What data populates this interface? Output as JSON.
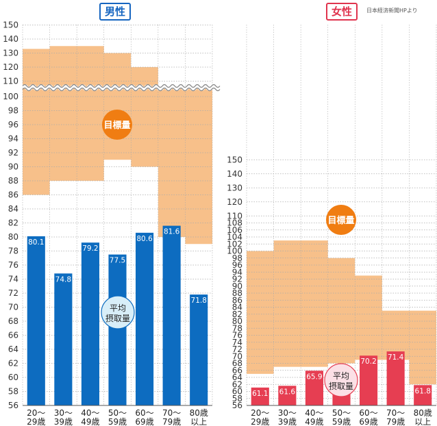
{
  "source_note": "日本経済新聞HPより",
  "colors": {
    "male_bar": "#0d6cc0",
    "female_bar": "#e63e52",
    "target_fill": "#f7c08a",
    "badge_target": "#f07d12",
    "male_badge": "#d8eef8",
    "female_badge": "#fbe0e6",
    "grid": "#aaaaaa"
  },
  "chart_data": [
    {
      "type": "bar",
      "title": "男性",
      "categories": [
        "20〜29歳",
        "30〜39歳",
        "40〜49歳",
        "50〜59歳",
        "60〜69歳",
        "70〜79歳",
        "80歳以上"
      ],
      "tick_labels": [
        [
          "20〜",
          "29歳"
        ],
        [
          "30〜",
          "39歳"
        ],
        [
          "40〜",
          "49歳"
        ],
        [
          "50〜",
          "59歳"
        ],
        [
          "60〜",
          "69歳"
        ],
        [
          "70〜",
          "79歳"
        ],
        [
          "80歳",
          "以上"
        ]
      ],
      "series": [
        {
          "name": "平均摂取量",
          "values": [
            80.1,
            74.8,
            79.2,
            77.5,
            80.6,
            81.6,
            71.8
          ]
        }
      ],
      "target_range": {
        "name": "目標量",
        "lower": [
          86,
          88,
          88,
          91,
          90,
          80,
          79
        ],
        "upper": [
          133,
          135,
          135,
          130,
          120,
          105,
          105
        ]
      },
      "y_axis_break": {
        "below": 100,
        "above": 110
      },
      "y_ticks_lower": [
        56,
        58,
        60,
        62,
        64,
        66,
        68,
        70,
        72,
        74,
        76,
        78,
        80,
        82,
        84,
        86,
        88,
        90,
        92,
        94,
        96,
        98,
        100
      ],
      "y_ticks_upper": [
        110,
        120,
        130,
        140,
        150
      ],
      "grid": true,
      "badge_target": "目標量",
      "badge_average": [
        "平均",
        "摂取量"
      ]
    },
    {
      "type": "bar",
      "title": "女性",
      "categories": [
        "20〜29歳",
        "30〜39歳",
        "40〜49歳",
        "50〜59歳",
        "60〜69歳",
        "70〜79歳",
        "80歳以上"
      ],
      "tick_labels": [
        [
          "20〜",
          "29歳"
        ],
        [
          "30〜",
          "39歳"
        ],
        [
          "40〜",
          "49歳"
        ],
        [
          "50〜",
          "59歳"
        ],
        [
          "60〜",
          "69歳"
        ],
        [
          "70〜",
          "79歳"
        ],
        [
          "80歳",
          "以上"
        ]
      ],
      "series": [
        {
          "name": "平均摂取量",
          "values": [
            61.1,
            61.6,
            65.9,
            64.1,
            70.2,
            71.4,
            61.8
          ]
        }
      ],
      "target_range": {
        "name": "目標量",
        "lower": [
          65,
          67,
          67,
          68,
          69,
          69,
          62
        ],
        "upper": [
          100,
          103,
          103,
          98,
          93,
          83,
          83
        ]
      },
      "y_ticks": [
        56,
        58,
        60,
        62,
        64,
        66,
        68,
        70,
        72,
        74,
        76,
        78,
        80,
        82,
        84,
        86,
        88,
        90,
        92,
        94,
        96,
        98,
        100,
        102,
        104,
        106,
        108,
        110,
        120,
        130,
        140,
        150
      ],
      "grid": true,
      "badge_target": "目標量",
      "badge_average": [
        "平均",
        "摂取量"
      ]
    }
  ]
}
